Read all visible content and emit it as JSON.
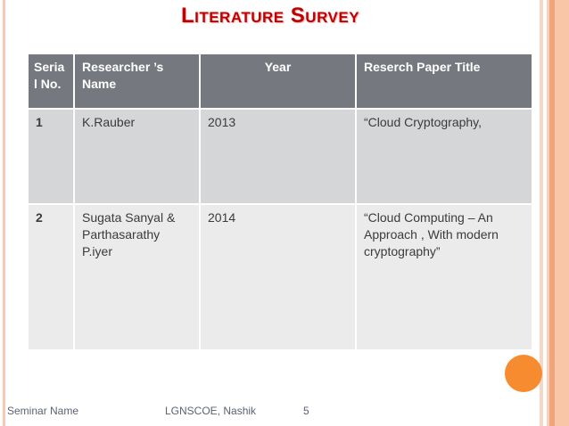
{
  "slide": {
    "title": "Literature Survey",
    "accent_red": "#C00000",
    "circle_color": "#F78B30",
    "stripe_colors": [
      "#F5CBB6",
      "#F7D6C5",
      "#F9D0BA",
      "#F0A67C",
      "#F9C6A7"
    ]
  },
  "table": {
    "header_bg": "#75787E",
    "row1_bg": "#D5D6D8",
    "row2_bg": "#EBEBEC",
    "headers": {
      "serial": "Seria l No.",
      "researcher": "Researcher ’s Name",
      "year": "Year",
      "paper_title": "Reserch Paper Title"
    },
    "rows": [
      {
        "serial": "1",
        "researcher": "K.Rauber",
        "year": "2013",
        "paper_title": "“Cloud Cryptography,"
      },
      {
        "serial": "2",
        "researcher": "Sugata Sanyal & Parthasarathy P.iyer",
        "year": "2014",
        "paper_title": "“Cloud Computing – An Approach , With modern cryptography”"
      }
    ]
  },
  "footer": {
    "seminar_name": "Seminar Name",
    "institute": "LGNSCOE, Nashik",
    "page_number": "5"
  }
}
